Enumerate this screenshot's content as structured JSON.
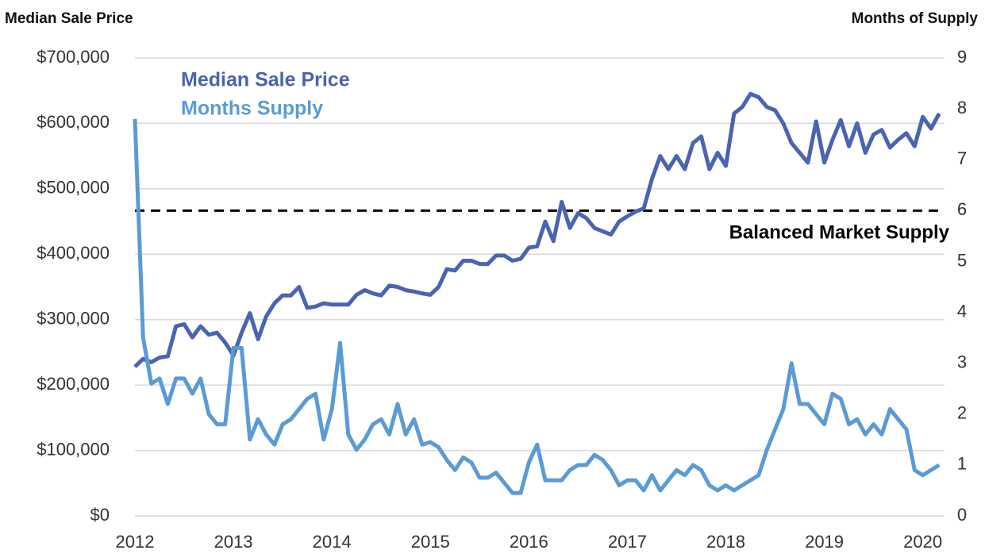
{
  "chart_data": {
    "type": "line",
    "y_axis_title": "Median Sale Price",
    "y2_axis_title": "Months of Supply",
    "categories": [
      "2012",
      null,
      null,
      null,
      null,
      null,
      null,
      null,
      null,
      null,
      null,
      null,
      "2013",
      null,
      null,
      null,
      null,
      null,
      null,
      null,
      null,
      null,
      null,
      null,
      "2014",
      null,
      null,
      null,
      null,
      null,
      null,
      null,
      null,
      null,
      null,
      null,
      "2015",
      null,
      null,
      null,
      null,
      null,
      null,
      null,
      null,
      null,
      null,
      null,
      "2016",
      null,
      null,
      null,
      null,
      null,
      null,
      null,
      null,
      null,
      null,
      null,
      "2017",
      null,
      null,
      null,
      null,
      null,
      null,
      null,
      null,
      null,
      null,
      null,
      "2018",
      null,
      null,
      null,
      null,
      null,
      null,
      null,
      null,
      null,
      null,
      null,
      "2019",
      null,
      null,
      null,
      null,
      null,
      null,
      null,
      null,
      null,
      null,
      null,
      "2020",
      null,
      null
    ],
    "series": [
      {
        "name": "Median Sale Price",
        "color": "#4a63b2",
        "axis": "y",
        "values": [
          228000,
          240000,
          235000,
          242000,
          244000,
          290000,
          293000,
          273000,
          290000,
          277000,
          280000,
          265000,
          245000,
          280000,
          310000,
          270000,
          305000,
          325000,
          337000,
          337000,
          350000,
          318000,
          320000,
          325000,
          323000,
          323000,
          323000,
          338000,
          345000,
          340000,
          337000,
          352000,
          350000,
          345000,
          343000,
          340000,
          338000,
          350000,
          377000,
          375000,
          390000,
          390000,
          385000,
          385000,
          398000,
          398000,
          390000,
          393000,
          410000,
          412000,
          450000,
          420000,
          480000,
          440000,
          463000,
          455000,
          440000,
          435000,
          430000,
          450000,
          458000,
          465000,
          470000,
          515000,
          550000,
          530000,
          550000,
          530000,
          570000,
          580000,
          530000,
          555000,
          535000,
          615000,
          625000,
          645000,
          640000,
          625000,
          620000,
          600000,
          570000,
          555000,
          540000,
          603000,
          540000,
          575000,
          605000,
          565000,
          600000,
          555000,
          583000,
          590000,
          563000,
          575000,
          585000,
          565000,
          610000,
          592000,
          615000
        ]
      },
      {
        "name": "Months Supply",
        "color": "#5b9bd5",
        "axis": "y2",
        "values": [
          7.8,
          3.5,
          2.6,
          2.7,
          2.2,
          2.7,
          2.7,
          2.4,
          2.7,
          2.0,
          1.8,
          1.8,
          3.3,
          3.3,
          1.5,
          1.9,
          1.6,
          1.4,
          1.8,
          1.9,
          2.1,
          2.3,
          2.4,
          1.5,
          2.1,
          3.4,
          1.6,
          1.3,
          1.5,
          1.8,
          1.9,
          1.6,
          2.2,
          1.6,
          1.9,
          1.4,
          1.45,
          1.35,
          1.1,
          0.9,
          1.15,
          1.05,
          0.75,
          0.75,
          0.85,
          0.65,
          0.45,
          0.45,
          1.05,
          1.4,
          0.7,
          0.7,
          0.7,
          0.9,
          1.0,
          1.0,
          1.2,
          1.1,
          0.9,
          0.6,
          0.7,
          0.7,
          0.5,
          0.8,
          0.5,
          0.7,
          0.9,
          0.8,
          1.0,
          0.9,
          0.6,
          0.5,
          0.6,
          0.5,
          0.6,
          0.7,
          0.8,
          1.3,
          1.7,
          2.1,
          3.0,
          2.2,
          2.2,
          2.0,
          1.8,
          2.4,
          2.3,
          1.8,
          1.9,
          1.6,
          1.8,
          1.6,
          2.1,
          1.9,
          1.7,
          0.9,
          0.8,
          0.9,
          1.0
        ]
      }
    ],
    "ylim": [
      0,
      700000
    ],
    "yticks": [
      {
        "value": 0,
        "label": "$0"
      },
      {
        "value": 100000,
        "label": "$100,000"
      },
      {
        "value": 200000,
        "label": "$200,000"
      },
      {
        "value": 300000,
        "label": "$300,000"
      },
      {
        "value": 400000,
        "label": "$400,000"
      },
      {
        "value": 500000,
        "label": "$500,000"
      },
      {
        "value": 600000,
        "label": "$600,000"
      },
      {
        "value": 700000,
        "label": "$700,000"
      }
    ],
    "y2lim": [
      0,
      9
    ],
    "y2ticks": [
      0,
      1,
      2,
      3,
      4,
      5,
      6,
      7,
      8,
      9
    ],
    "grid": true,
    "reference_line": {
      "value": 6,
      "label": "Balanced Market Supply",
      "axis": "y2",
      "color": "#000000"
    }
  }
}
